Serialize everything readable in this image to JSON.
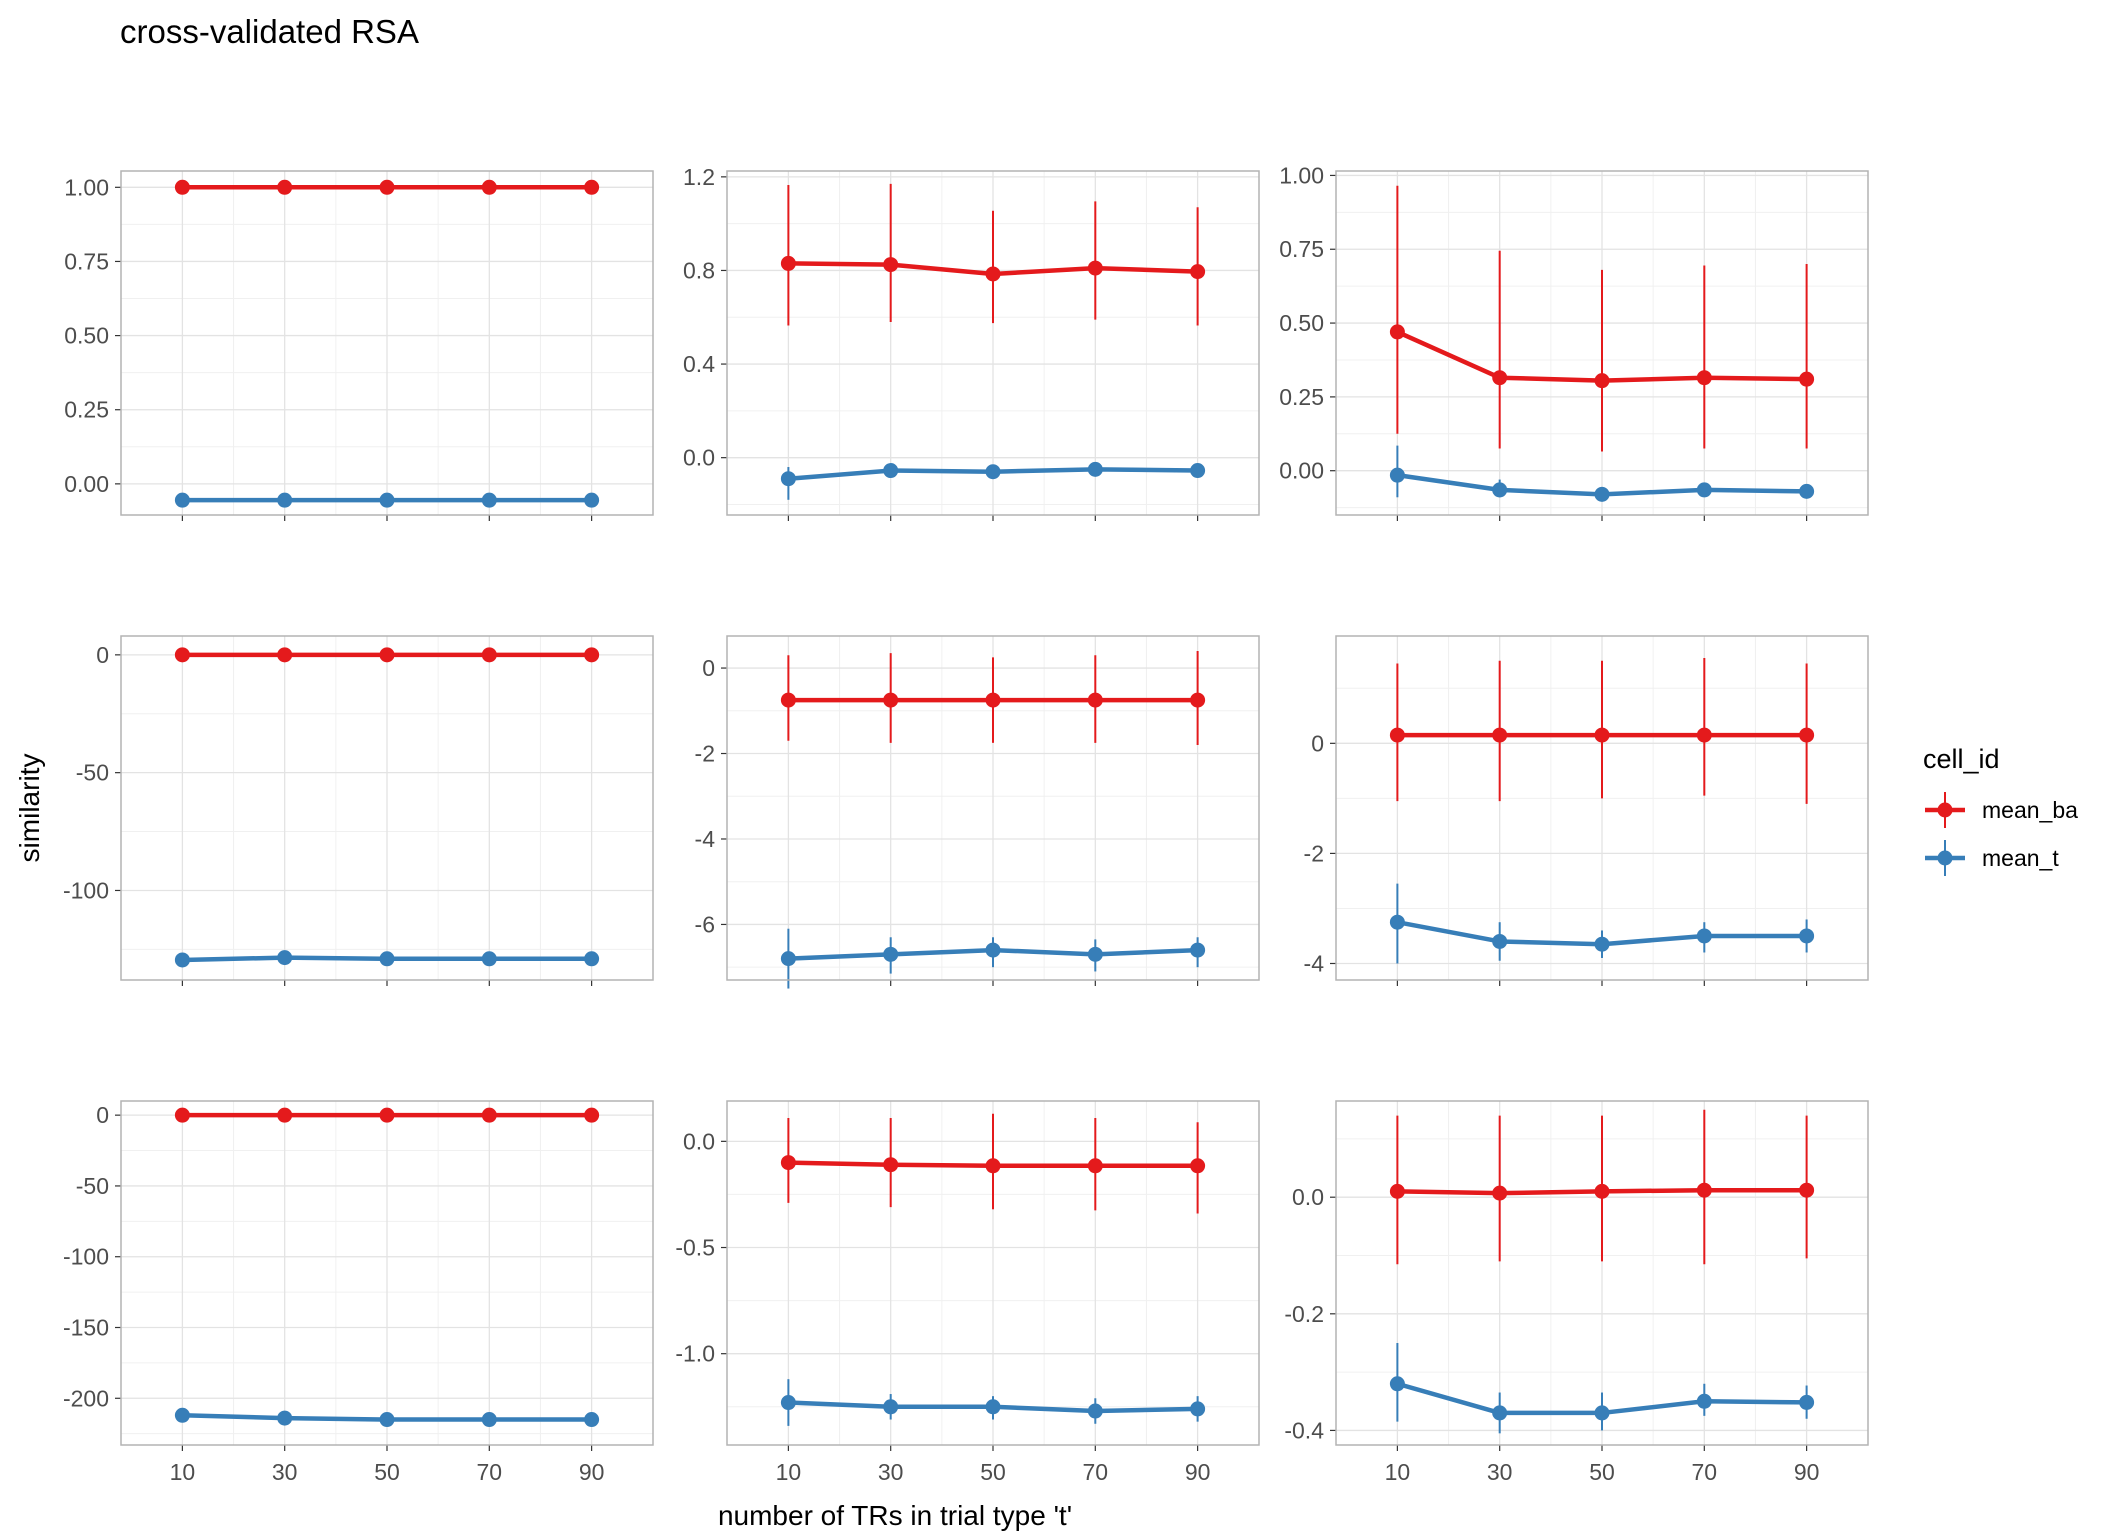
{
  "chart_data": {
    "type": "line",
    "title": "cross-validated RSA",
    "xlabel": "number of TRs in trial type 't'",
    "ylabel": "similarity",
    "x": [
      10,
      30,
      50,
      70,
      90
    ],
    "xlim": [
      -2,
      102
    ],
    "x_ticks": [
      "10",
      "30",
      "50",
      "70",
      "90"
    ],
    "grid": true,
    "legend": {
      "title": "cell_id",
      "placement": "right",
      "entries": [
        {
          "name": "mean_ba",
          "color": "#E41A1C"
        },
        {
          "name": "mean_t",
          "color": "#377EB8"
        }
      ]
    },
    "panels": [
      {
        "ylim": [
          -0.105,
          1.055
        ],
        "y_ticks": [
          0,
          0.25,
          0.5,
          0.75,
          1.0
        ],
        "y_tick_labels": [
          "0.00",
          "0.25",
          "0.50",
          "0.75",
          "1.00"
        ],
        "series": [
          {
            "name": "mean_ba",
            "values": [
              1,
              1,
              1,
              1,
              1
            ],
            "lower": [
              1,
              1,
              1,
              1,
              1
            ],
            "upper": [
              1,
              1,
              1,
              1,
              1
            ]
          },
          {
            "name": "mean_t",
            "values": [
              -0.055,
              -0.055,
              -0.055,
              -0.055,
              -0.055
            ],
            "lower": [
              -0.055,
              -0.055,
              -0.055,
              -0.055,
              -0.055
            ],
            "upper": [
              -0.055,
              -0.055,
              -0.055,
              -0.055,
              -0.055
            ]
          }
        ]
      },
      {
        "ylim": [
          -0.245,
          1.225
        ],
        "y_ticks": [
          0,
          0.4,
          0.8,
          1.2
        ],
        "y_tick_labels": [
          "0.0",
          "0.4",
          "0.8",
          "1.2"
        ],
        "series": [
          {
            "name": "mean_ba",
            "values": [
              0.83,
              0.825,
              0.785,
              0.81,
              0.795
            ],
            "lower": [
              0.565,
              0.58,
              0.575,
              0.59,
              0.565
            ],
            "upper": [
              1.165,
              1.17,
              1.055,
              1.095,
              1.07
            ]
          },
          {
            "name": "mean_t",
            "values": [
              -0.09,
              -0.055,
              -0.06,
              -0.05,
              -0.055
            ],
            "lower": [
              -0.18,
              -0.085,
              -0.085,
              -0.075,
              -0.08
            ],
            "upper": [
              -0.04,
              -0.03,
              -0.04,
              -0.03,
              -0.035
            ]
          }
        ]
      },
      {
        "ylim": [
          -0.15,
          1.015
        ],
        "y_ticks": [
          0,
          0.25,
          0.5,
          0.75,
          1.0
        ],
        "y_tick_labels": [
          "0.00",
          "0.25",
          "0.50",
          "0.75",
          "1.00"
        ],
        "series": [
          {
            "name": "mean_ba",
            "values": [
              0.47,
              0.315,
              0.305,
              0.315,
              0.31
            ],
            "lower": [
              0.125,
              0.075,
              0.065,
              0.075,
              0.075
            ],
            "upper": [
              0.965,
              0.745,
              0.68,
              0.695,
              0.7
            ]
          },
          {
            "name": "mean_t",
            "values": [
              -0.015,
              -0.065,
              -0.08,
              -0.065,
              -0.07
            ],
            "lower": [
              -0.09,
              -0.09,
              -0.1,
              -0.085,
              -0.09
            ],
            "upper": [
              0.085,
              -0.03,
              -0.055,
              -0.045,
              -0.055
            ]
          }
        ]
      },
      {
        "ylim": [
          -138,
          8
        ],
        "y_ticks": [
          -100,
          -50,
          0
        ],
        "y_tick_labels": [
          "-100",
          "-50",
          "0"
        ],
        "series": [
          {
            "name": "mean_ba",
            "values": [
              0,
              0,
              0,
              0,
              0
            ],
            "lower": [
              -0.8,
              -0.8,
              -0.8,
              -0.8,
              -0.8
            ],
            "upper": [
              0.8,
              0.8,
              0.8,
              0.8,
              0.8
            ]
          },
          {
            "name": "mean_t",
            "values": [
              -129.5,
              -128.5,
              -129,
              -129,
              -129
            ],
            "lower": [
              -130.5,
              -129.5,
              -130,
              -130,
              -130
            ],
            "upper": [
              -128.5,
              -127.5,
              -128,
              -128,
              -128
            ]
          }
        ]
      },
      {
        "ylim": [
          -7.3,
          0.75
        ],
        "y_ticks": [
          -6,
          -4,
          -2,
          0
        ],
        "y_tick_labels": [
          "-6",
          "-4",
          "-2",
          "0"
        ],
        "series": [
          {
            "name": "mean_ba",
            "values": [
              -0.75,
              -0.75,
              -0.75,
              -0.75,
              -0.75
            ],
            "lower": [
              -1.7,
              -1.75,
              -1.75,
              -1.75,
              -1.8
            ],
            "upper": [
              0.3,
              0.35,
              0.25,
              0.3,
              0.4
            ]
          },
          {
            "name": "mean_t",
            "values": [
              -6.8,
              -6.7,
              -6.6,
              -6.7,
              -6.6
            ],
            "lower": [
              -7.5,
              -7.15,
              -7.0,
              -7.1,
              -7.0
            ],
            "upper": [
              -6.1,
              -6.3,
              -6.3,
              -6.35,
              -6.3
            ]
          }
        ]
      },
      {
        "ylim": [
          -4.3,
          1.95
        ],
        "y_ticks": [
          -4,
          -2,
          0
        ],
        "y_tick_labels": [
          "-4",
          "-2",
          "0"
        ],
        "series": [
          {
            "name": "mean_ba",
            "values": [
              0.15,
              0.15,
              0.15,
              0.15,
              0.15
            ],
            "lower": [
              -1.05,
              -1.05,
              -1.0,
              -0.95,
              -1.1
            ],
            "upper": [
              1.45,
              1.5,
              1.5,
              1.55,
              1.45
            ]
          },
          {
            "name": "mean_t",
            "values": [
              -3.25,
              -3.6,
              -3.65,
              -3.5,
              -3.5
            ],
            "lower": [
              -4.0,
              -3.95,
              -3.9,
              -3.8,
              -3.8
            ],
            "upper": [
              -2.55,
              -3.25,
              -3.4,
              -3.25,
              -3.2
            ]
          }
        ]
      },
      {
        "ylim": [
          -233,
          10
        ],
        "y_ticks": [
          -200,
          -150,
          -100,
          -50,
          0
        ],
        "y_tick_labels": [
          "-200",
          "-150",
          "-100",
          "-50",
          "0"
        ],
        "series": [
          {
            "name": "mean_ba",
            "values": [
              0,
              0,
              0,
              0,
              0
            ],
            "lower": [
              -1.2,
              -1.2,
              -1.2,
              -1.2,
              -1.2
            ],
            "upper": [
              1.2,
              1.2,
              1.2,
              1.2,
              1.2
            ]
          },
          {
            "name": "mean_t",
            "values": [
              -212,
              -214,
              -215,
              -215,
              -215
            ],
            "lower": [
              -214,
              -216,
              -217,
              -217,
              -217
            ],
            "upper": [
              -210,
              -212,
              -213,
              -213,
              -213
            ]
          }
        ]
      },
      {
        "ylim": [
          -1.43,
          0.19
        ],
        "y_ticks": [
          -1.0,
          -0.5,
          0
        ],
        "y_tick_labels": [
          "-1.0",
          "-0.5",
          "0.0"
        ],
        "series": [
          {
            "name": "mean_ba",
            "values": [
              -0.1,
              -0.11,
              -0.115,
              -0.115,
              -0.115
            ],
            "lower": [
              -0.29,
              -0.31,
              -0.32,
              -0.325,
              -0.34
            ],
            "upper": [
              0.11,
              0.11,
              0.13,
              0.11,
              0.09
            ]
          },
          {
            "name": "mean_t",
            "values": [
              -1.23,
              -1.25,
              -1.25,
              -1.27,
              -1.26
            ],
            "lower": [
              -1.34,
              -1.31,
              -1.31,
              -1.33,
              -1.32
            ],
            "upper": [
              -1.12,
              -1.19,
              -1.2,
              -1.21,
              -1.2
            ]
          }
        ]
      },
      {
        "ylim": [
          -0.425,
          0.165
        ],
        "y_ticks": [
          -0.4,
          -0.2,
          0
        ],
        "y_tick_labels": [
          "-0.4",
          "-0.2",
          "0.0"
        ],
        "series": [
          {
            "name": "mean_ba",
            "values": [
              0.01,
              0.007,
              0.01,
              0.012,
              0.012
            ],
            "lower": [
              -0.115,
              -0.11,
              -0.11,
              -0.115,
              -0.105
            ],
            "upper": [
              0.14,
              0.14,
              0.14,
              0.15,
              0.14
            ]
          },
          {
            "name": "mean_t",
            "values": [
              -0.32,
              -0.37,
              -0.37,
              -0.35,
              -0.352
            ],
            "lower": [
              -0.385,
              -0.405,
              -0.4,
              -0.375,
              -0.38
            ],
            "upper": [
              -0.25,
              -0.335,
              -0.335,
              -0.32,
              -0.323
            ]
          }
        ]
      }
    ]
  }
}
